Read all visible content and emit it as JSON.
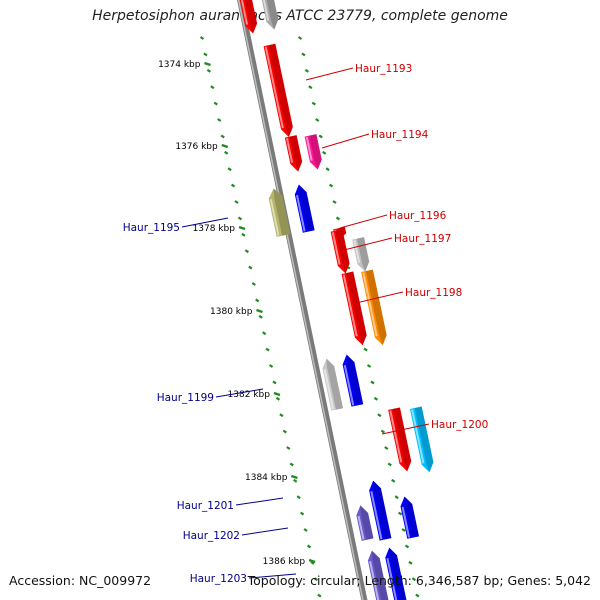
{
  "title": "Herpetosiphon aurantiacus ATCC 23779, complete genome",
  "footer": {
    "accession": "Accession: NC_009972",
    "topology": "Topology: circular; Length: 6,346,587 bp; Genes: 5,042"
  },
  "colors": {
    "backbone": "#8a8a8a",
    "tick": "#228B22",
    "forward_label": "#cc0000",
    "reverse_label": "#00008b"
  },
  "scale_ticks": [
    {
      "kbp": 1374,
      "label": "1374 kbp"
    },
    {
      "kbp": 1376,
      "label": "1376 kbp"
    },
    {
      "kbp": 1378,
      "label": "1378 kbp"
    },
    {
      "kbp": 1380,
      "label": "1380 kbp"
    },
    {
      "kbp": 1382,
      "label": "1382 kbp"
    },
    {
      "kbp": 1384,
      "label": "1384 kbp"
    },
    {
      "kbp": 1386,
      "label": "1386 kbp"
    }
  ],
  "genes": [
    {
      "name": "Haur_1193",
      "strand": "+",
      "color": "#ff0000"
    },
    {
      "name": "Haur_1194",
      "strand": "+",
      "color": "#ff1493"
    },
    {
      "name": "Haur_1195",
      "strand": "-",
      "color": "#b5b56a"
    },
    {
      "name": "Haur_1196",
      "strand": "+",
      "color": "#ff0000"
    },
    {
      "name": "Haur_1197",
      "strand": "+",
      "color": "#c0c0c0"
    },
    {
      "name": "Haur_1198",
      "strand": "+",
      "color": "#ff8c00"
    },
    {
      "name": "Haur_1199",
      "strand": "-",
      "color": "#c8c8c8"
    },
    {
      "name": "Haur_1200",
      "strand": "+",
      "color": "#00bfff"
    },
    {
      "name": "Haur_1201",
      "strand": "-",
      "color": "#0000ff"
    },
    {
      "name": "Haur_1202",
      "strand": "-",
      "color": "#6a5acd"
    },
    {
      "name": "Haur_1203",
      "strand": "-",
      "color": "#0000ff"
    }
  ]
}
